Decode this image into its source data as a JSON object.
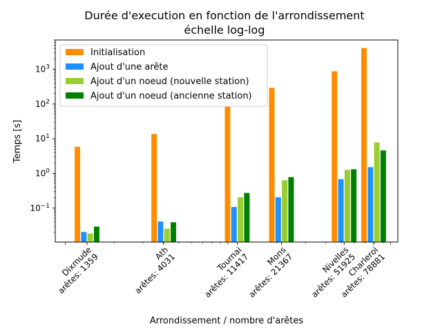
{
  "chart_data": {
    "type": "bar",
    "title_line1": "Durée d'execution en fonction de l'arrondissement",
    "title_line2": "échelle log-log",
    "xlabel": "Arrondissement / nombre d'arêtes",
    "ylabel": "Temps [s]",
    "x_scale": "log",
    "y_scale": "log",
    "ylim": [
      0.0105,
      7000
    ],
    "y_ticks": [
      {
        "value": 0.1,
        "base": "10",
        "exp": "−1"
      },
      {
        "value": 1,
        "base": "10",
        "exp": "0"
      },
      {
        "value": 10,
        "base": "10",
        "exp": "1"
      },
      {
        "value": 100,
        "base": "10",
        "exp": "2"
      },
      {
        "value": 1000,
        "base": "10",
        "exp": "3"
      }
    ],
    "categories": [
      {
        "name": "Dixmude",
        "edges_label": "arêtes: 1359",
        "edges": 1359
      },
      {
        "name": "Ath",
        "edges_label": "arêtes: 4031",
        "edges": 4031
      },
      {
        "name": "Tournai",
        "edges_label": "arêtes: 11417",
        "edges": 11417
      },
      {
        "name": "Mons",
        "edges_label": "arêtes: 21367",
        "edges": 21367
      },
      {
        "name": "Nivelles",
        "edges_label": "arêtes: 51925",
        "edges": 51925
      },
      {
        "name": "Charleroi",
        "edges_label": "arêtes: 78881",
        "edges": 78881
      }
    ],
    "series": [
      {
        "name": "Initialisation",
        "color": "#ff8c00",
        "values": [
          6.0,
          14.0,
          85.0,
          300.0,
          900.0,
          4200.0
        ]
      },
      {
        "name": "Ajout d'une arête",
        "color": "#1e90ff",
        "values": [
          0.021,
          0.042,
          0.11,
          0.21,
          0.7,
          1.55
        ]
      },
      {
        "name": "Ajout d'un noeud (nouvelle station)",
        "color": "#9acd32",
        "values": [
          0.019,
          0.026,
          0.21,
          0.65,
          1.3,
          8.0
        ]
      },
      {
        "name": "Ajout d'un noeud (ancienne station)",
        "color": "#008000",
        "values": [
          0.03,
          0.04,
          0.28,
          0.8,
          1.35,
          4.7
        ]
      }
    ],
    "legend_position": "top-left",
    "grid": false
  }
}
